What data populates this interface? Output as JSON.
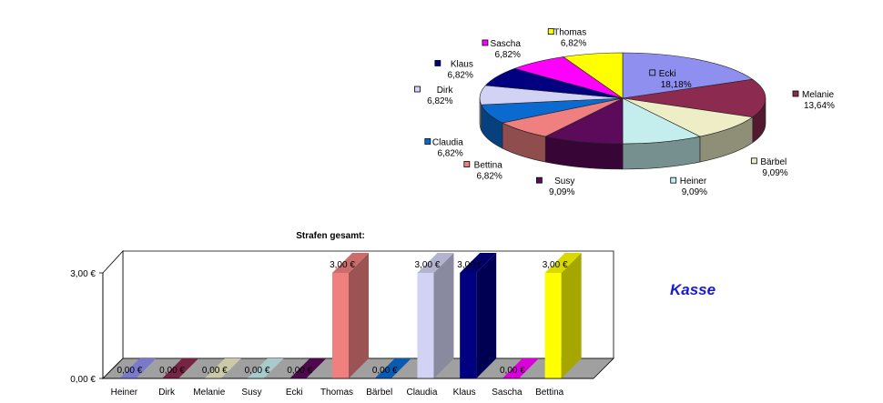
{
  "kasse_label": "Kasse",
  "chart_data": [
    {
      "type": "pie",
      "title": "",
      "slices": [
        {
          "name": "Ecki",
          "label": "18,18%",
          "value": 18.18,
          "color": "#8f8ff0"
        },
        {
          "name": "Melanie",
          "label": "13,64%",
          "value": 13.64,
          "color": "#8c2a50"
        },
        {
          "name": "Bärbel",
          "label": "9,09%",
          "value": 9.09,
          "color": "#eeeec6"
        },
        {
          "name": "Heiner",
          "label": "9,09%",
          "value": 9.09,
          "color": "#c4eeee"
        },
        {
          "name": "Susy",
          "label": "9,09%",
          "value": 9.09,
          "color": "#5c0a5a"
        },
        {
          "name": "Bettina",
          "label": "6,82%",
          "value": 6.82,
          "color": "#f08080"
        },
        {
          "name": "Claudia",
          "label": "6,82%",
          "value": 6.82,
          "color": "#0a6ad0"
        },
        {
          "name": "Dirk",
          "label": "6,82%",
          "value": 6.82,
          "color": "#d2d2f4"
        },
        {
          "name": "Klaus",
          "label": "6,82%",
          "value": 6.82,
          "color": "#000080"
        },
        {
          "name": "Sascha",
          "label": "6,82%",
          "value": 6.82,
          "color": "#ff00ff"
        },
        {
          "name": "Thomas",
          "label": "6,82%",
          "value": 6.82,
          "color": "#ffff00"
        }
      ]
    },
    {
      "type": "bar",
      "title": "Strafen gesamt:",
      "categories": [
        "Heiner",
        "Dirk",
        "Melanie",
        "Susy",
        "Ecki",
        "Thomas",
        "Bärbel",
        "Claudia",
        "Klaus",
        "Sascha",
        "Bettina"
      ],
      "values": [
        0,
        0,
        0,
        0,
        0,
        3,
        0,
        3,
        3,
        0,
        3
      ],
      "value_labels": [
        "0,00 €",
        "0,00 €",
        "0,00 €",
        "0,00 €",
        "0,00 €",
        "3,00 €",
        "0,00 €",
        "3,00 €",
        "3,00 €",
        "0,00 €",
        "3,00 €"
      ],
      "colors": [
        "#8f8ff0",
        "#8c2a50",
        "#eeeec6",
        "#c4eeee",
        "#5c0a5a",
        "#f08080",
        "#0a6ad0",
        "#d2d2f4",
        "#000080",
        "#ff00ff",
        "#ffff00"
      ],
      "ylim": [
        0,
        3
      ],
      "yticks": [
        "0,00 €",
        "3,00 €"
      ],
      "xlabel": "",
      "ylabel": ""
    }
  ]
}
